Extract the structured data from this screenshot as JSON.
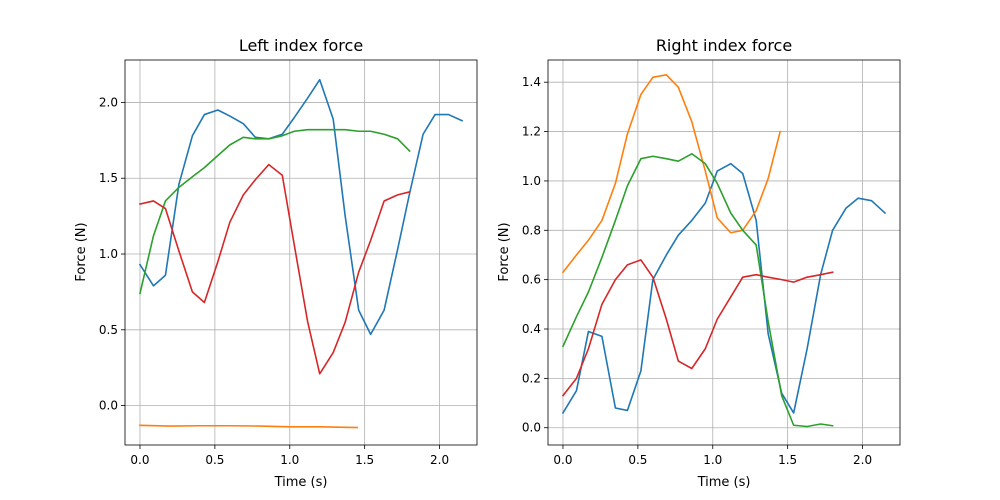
{
  "chart_data": [
    {
      "type": "line",
      "title": "Left index force",
      "xlabel": "Time (s)",
      "ylabel": "Force (N)",
      "xlim": [
        -0.1,
        2.25
      ],
      "ylim": [
        -0.26,
        2.28
      ],
      "xticks": [
        0.0,
        0.5,
        1.0,
        1.5,
        2.0
      ],
      "xtick_labels": [
        "0.0",
        "0.5",
        "1.0",
        "1.5",
        "2.0"
      ],
      "yticks": [
        0.0,
        0.5,
        1.0,
        1.5,
        2.0
      ],
      "ytick_labels": [
        "0.0",
        "0.5",
        "1.0",
        "1.5",
        "2.0"
      ],
      "grid": true,
      "series": [
        {
          "color": "#1f77b4",
          "x": [
            0.0,
            0.09,
            0.17,
            0.26,
            0.35,
            0.43,
            0.52,
            0.6,
            0.69,
            0.77,
            0.86,
            0.95,
            1.03,
            1.12,
            1.2,
            1.29,
            1.37,
            1.46,
            1.54,
            1.63,
            1.72,
            1.8,
            1.89,
            1.97,
            2.06,
            2.15
          ],
          "y": [
            0.93,
            0.79,
            0.86,
            1.46,
            1.78,
            1.92,
            1.95,
            1.91,
            1.86,
            1.77,
            1.76,
            1.79,
            1.9,
            2.03,
            2.15,
            1.89,
            1.25,
            0.63,
            0.47,
            0.63,
            1.03,
            1.4,
            1.79,
            1.92,
            1.92,
            1.88
          ]
        },
        {
          "color": "#ff7f0e",
          "x": [
            0.0,
            0.2,
            0.4,
            0.6,
            0.8,
            1.0,
            1.2,
            1.45
          ],
          "y": [
            -0.13,
            -0.135,
            -0.133,
            -0.133,
            -0.135,
            -0.14,
            -0.14,
            -0.145
          ]
        },
        {
          "color": "#2ca02c",
          "x": [
            0.0,
            0.09,
            0.17,
            0.26,
            0.35,
            0.43,
            0.52,
            0.6,
            0.69,
            0.77,
            0.86,
            0.95,
            1.03,
            1.12,
            1.2,
            1.29,
            1.37,
            1.46,
            1.54,
            1.63,
            1.72,
            1.8
          ],
          "y": [
            0.74,
            1.12,
            1.35,
            1.44,
            1.51,
            1.57,
            1.65,
            1.72,
            1.77,
            1.76,
            1.76,
            1.78,
            1.81,
            1.82,
            1.82,
            1.82,
            1.82,
            1.81,
            1.81,
            1.79,
            1.76,
            1.68
          ]
        },
        {
          "color": "#d62728",
          "x": [
            0.0,
            0.09,
            0.17,
            0.26,
            0.35,
            0.43,
            0.52,
            0.6,
            0.69,
            0.77,
            0.86,
            0.95,
            1.03,
            1.12,
            1.2,
            1.29,
            1.37,
            1.46,
            1.54,
            1.63,
            1.72,
            1.8
          ],
          "y": [
            1.33,
            1.35,
            1.3,
            1.02,
            0.75,
            0.68,
            0.95,
            1.21,
            1.39,
            1.49,
            1.59,
            1.52,
            1.06,
            0.55,
            0.21,
            0.35,
            0.55,
            0.88,
            1.09,
            1.35,
            1.39,
            1.41
          ]
        }
      ]
    },
    {
      "type": "line",
      "title": "Right index force",
      "xlabel": "Time (s)",
      "ylabel": "Force (N)",
      "xlim": [
        -0.1,
        2.25
      ],
      "ylim": [
        -0.07,
        1.49
      ],
      "xticks": [
        0.0,
        0.5,
        1.0,
        1.5,
        2.0
      ],
      "xtick_labels": [
        "0.0",
        "0.5",
        "1.0",
        "1.5",
        "2.0"
      ],
      "yticks": [
        0.0,
        0.2,
        0.4,
        0.6,
        0.8,
        1.0,
        1.2,
        1.4
      ],
      "ytick_labels": [
        "0.0",
        "0.2",
        "0.4",
        "0.6",
        "0.8",
        "1.0",
        "1.2",
        "1.4"
      ],
      "grid": true,
      "series": [
        {
          "color": "#1f77b4",
          "x": [
            0.0,
            0.09,
            0.17,
            0.26,
            0.35,
            0.43,
            0.52,
            0.6,
            0.69,
            0.77,
            0.86,
            0.95,
            1.03,
            1.12,
            1.2,
            1.29,
            1.37,
            1.46,
            1.54,
            1.63,
            1.72,
            1.8,
            1.89,
            1.97,
            2.06,
            2.15
          ],
          "y": [
            0.06,
            0.15,
            0.39,
            0.37,
            0.08,
            0.07,
            0.23,
            0.6,
            0.7,
            0.78,
            0.84,
            0.91,
            1.04,
            1.07,
            1.03,
            0.84,
            0.38,
            0.14,
            0.06,
            0.32,
            0.62,
            0.8,
            0.89,
            0.93,
            0.92,
            0.87
          ]
        },
        {
          "color": "#ff7f0e",
          "x": [
            0.0,
            0.09,
            0.17,
            0.26,
            0.35,
            0.43,
            0.52,
            0.6,
            0.69,
            0.77,
            0.86,
            0.95,
            1.03,
            1.12,
            1.2,
            1.29,
            1.37,
            1.45
          ],
          "y": [
            0.63,
            0.7,
            0.76,
            0.84,
            0.99,
            1.19,
            1.35,
            1.42,
            1.43,
            1.38,
            1.24,
            1.04,
            0.85,
            0.79,
            0.8,
            0.88,
            1.01,
            1.2
          ]
        },
        {
          "color": "#2ca02c",
          "x": [
            0.0,
            0.09,
            0.17,
            0.26,
            0.35,
            0.43,
            0.52,
            0.6,
            0.69,
            0.77,
            0.86,
            0.95,
            1.03,
            1.12,
            1.2,
            1.29,
            1.37,
            1.46,
            1.54,
            1.63,
            1.72,
            1.8
          ],
          "y": [
            0.33,
            0.45,
            0.55,
            0.69,
            0.84,
            0.98,
            1.09,
            1.1,
            1.09,
            1.08,
            1.11,
            1.07,
            0.99,
            0.87,
            0.8,
            0.74,
            0.43,
            0.13,
            0.01,
            0.005,
            0.015,
            0.008
          ]
        },
        {
          "color": "#d62728",
          "x": [
            0.0,
            0.09,
            0.17,
            0.26,
            0.35,
            0.43,
            0.52,
            0.6,
            0.69,
            0.77,
            0.86,
            0.95,
            1.03,
            1.12,
            1.2,
            1.29,
            1.37,
            1.46,
            1.54,
            1.63,
            1.72,
            1.8
          ],
          "y": [
            0.13,
            0.2,
            0.32,
            0.5,
            0.6,
            0.66,
            0.68,
            0.61,
            0.44,
            0.27,
            0.24,
            0.32,
            0.44,
            0.53,
            0.61,
            0.62,
            0.61,
            0.6,
            0.59,
            0.61,
            0.62,
            0.63
          ]
        }
      ]
    }
  ]
}
